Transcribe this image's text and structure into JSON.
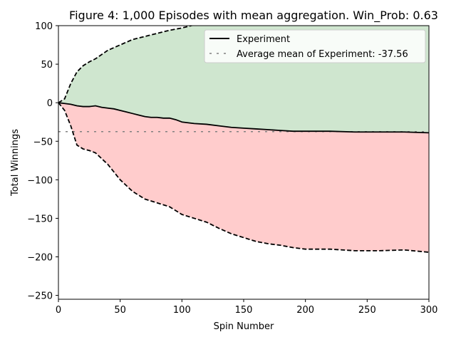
{
  "chart_data": {
    "type": "line",
    "title": "Figure 4: 1,000 Episodes with mean aggregation. Win_Prob: 0.63",
    "xlabel": "Spin Number",
    "ylabel": "Total Winnings",
    "xlim": [
      0,
      300
    ],
    "ylim": [
      -255,
      100
    ],
    "xticks": [
      0,
      50,
      100,
      150,
      200,
      250,
      300
    ],
    "yticks": [
      100,
      50,
      0,
      -50,
      -100,
      -150,
      -200,
      -250
    ],
    "xtick_labels": [
      "0",
      "50",
      "100",
      "150",
      "200",
      "250",
      "300"
    ],
    "ytick_labels": [
      "100",
      "50",
      "0",
      "−50",
      "−100",
      "−150",
      "−200",
      "−250"
    ],
    "grid": false,
    "legend_position": "top-right",
    "series": [
      {
        "name": "Experiment",
        "color": "#000000",
        "x": [
          0,
          5,
          10,
          15,
          20,
          25,
          30,
          35,
          40,
          45,
          50,
          55,
          60,
          65,
          70,
          75,
          80,
          85,
          90,
          95,
          100,
          110,
          120,
          130,
          140,
          150,
          160,
          170,
          180,
          190,
          200,
          220,
          240,
          260,
          280,
          300
        ],
        "y": [
          0,
          -1,
          -2,
          -4,
          -5,
          -5,
          -4,
          -6,
          -7,
          -8,
          -10,
          -12,
          -14,
          -16,
          -18,
          -19,
          -19,
          -20,
          -20,
          -22,
          -25,
          -27,
          -28,
          -30,
          -32,
          -33,
          -34,
          -35,
          -36,
          -37,
          -37,
          -37,
          -38,
          -38,
          -38,
          -39
        ]
      }
    ],
    "upper_band": {
      "color": "#000000",
      "fill": "#cfe6cf",
      "x": [
        0,
        5,
        10,
        15,
        20,
        25,
        30,
        40,
        50,
        60,
        70,
        80,
        90,
        100,
        110
      ],
      "y": [
        0,
        5,
        25,
        40,
        48,
        53,
        57,
        68,
        75,
        82,
        86,
        90,
        94,
        97,
        101
      ]
    },
    "lower_band": {
      "color": "#000000",
      "fill": "#ffcccc",
      "x": [
        0,
        5,
        10,
        15,
        20,
        25,
        30,
        40,
        50,
        60,
        70,
        80,
        90,
        100,
        110,
        120,
        130,
        140,
        150,
        160,
        170,
        180,
        190,
        200,
        220,
        240,
        260,
        280,
        300
      ],
      "y": [
        0,
        -10,
        -30,
        -55,
        -60,
        -62,
        -65,
        -80,
        -100,
        -115,
        -125,
        -130,
        -135,
        -145,
        -150,
        -155,
        -163,
        -170,
        -175,
        -180,
        -183,
        -185,
        -188,
        -190,
        -190,
        -192,
        -192,
        -191,
        -194
      ]
    },
    "average_line": {
      "name": "Average mean of Experiment: -37.56",
      "value": -37.56,
      "color": "#808080"
    }
  }
}
